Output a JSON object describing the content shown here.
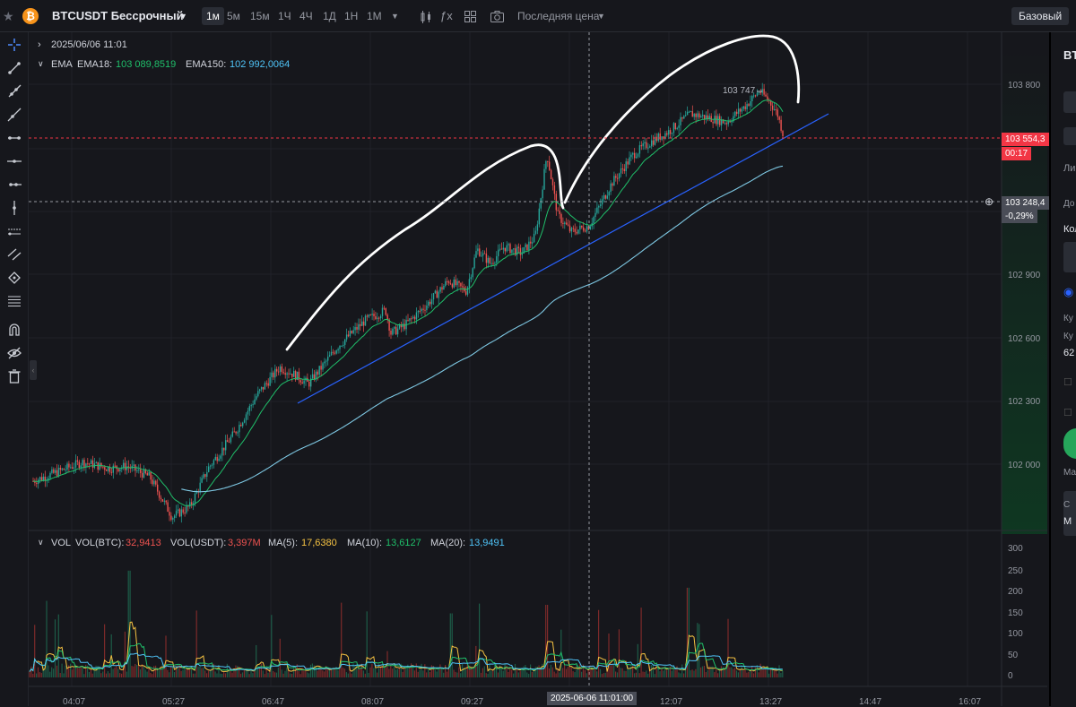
{
  "topbar": {
    "coin_glyph": "₿",
    "symbol": "BTCUSDT Бессрочный",
    "timeframes": [
      {
        "label": "1м",
        "active": true
      },
      {
        "label": "5м",
        "active": false
      },
      {
        "label": "15м",
        "active": false
      },
      {
        "label": "1Ч",
        "active": false
      },
      {
        "label": "4Ч",
        "active": false
      },
      {
        "label": "1Д",
        "active": false
      },
      {
        "label": "1Н",
        "active": false
      },
      {
        "label": "1М",
        "active": false
      }
    ],
    "price_type": "Последняя цена",
    "basic_button": "Базовый"
  },
  "legend": {
    "datetime": "2025/06/06 11:01",
    "ema_label": "EMA",
    "ema18_label": "EMA18:",
    "ema18_value": "103 089,8519",
    "ema150_label": "EMA150:",
    "ema150_value": "102 992,0064",
    "vol_label": "VOL",
    "vol_btc_label": "VOL(BTC):",
    "vol_btc_value": "32,9413",
    "vol_usdt_label": "VOL(USDT):",
    "vol_usdt_value": "3,397M",
    "ma5_label": "MA(5):",
    "ma5_value": "17,6380",
    "ma10_label": "MA(10):",
    "ma10_value": "13,6127",
    "ma20_label": "MA(20):",
    "ma20_value": "13,9491"
  },
  "price_axis": {
    "ticks": [
      "103 800",
      "102 900",
      "102 600",
      "102 300",
      "102 000"
    ],
    "current_price": "103 554,3",
    "countdown": "00:17",
    "crosshair_price": "103 248,4",
    "crosshair_change": "-0,29%",
    "high_label": "103 747"
  },
  "volume_axis": {
    "ticks": [
      "300",
      "250",
      "200",
      "150",
      "100",
      "50",
      "0"
    ]
  },
  "time_axis": {
    "ticks": [
      "04:07",
      "05:27",
      "06:47",
      "08:07",
      "09:27",
      "12:07",
      "13:27",
      "14:47",
      "16:07"
    ],
    "crosshair_time": "2025-06-06 11:01:00"
  },
  "colors": {
    "up": "#26a69a",
    "down": "#ef5350",
    "ema18": "#1fbf6a",
    "ema150": "#7ec8e3",
    "trendline": "#2962ff",
    "ma5": "#f5c242",
    "ma10": "#1fbf6a",
    "ma20": "#4fc3f7",
    "current_price_bg": "#f23645"
  },
  "right_panel": {
    "texts": [
      "BT",
      "Ли",
      "До",
      "Кол",
      "Ку",
      "Ку",
      "62",
      "Ма",
      "С",
      "М"
    ]
  }
}
